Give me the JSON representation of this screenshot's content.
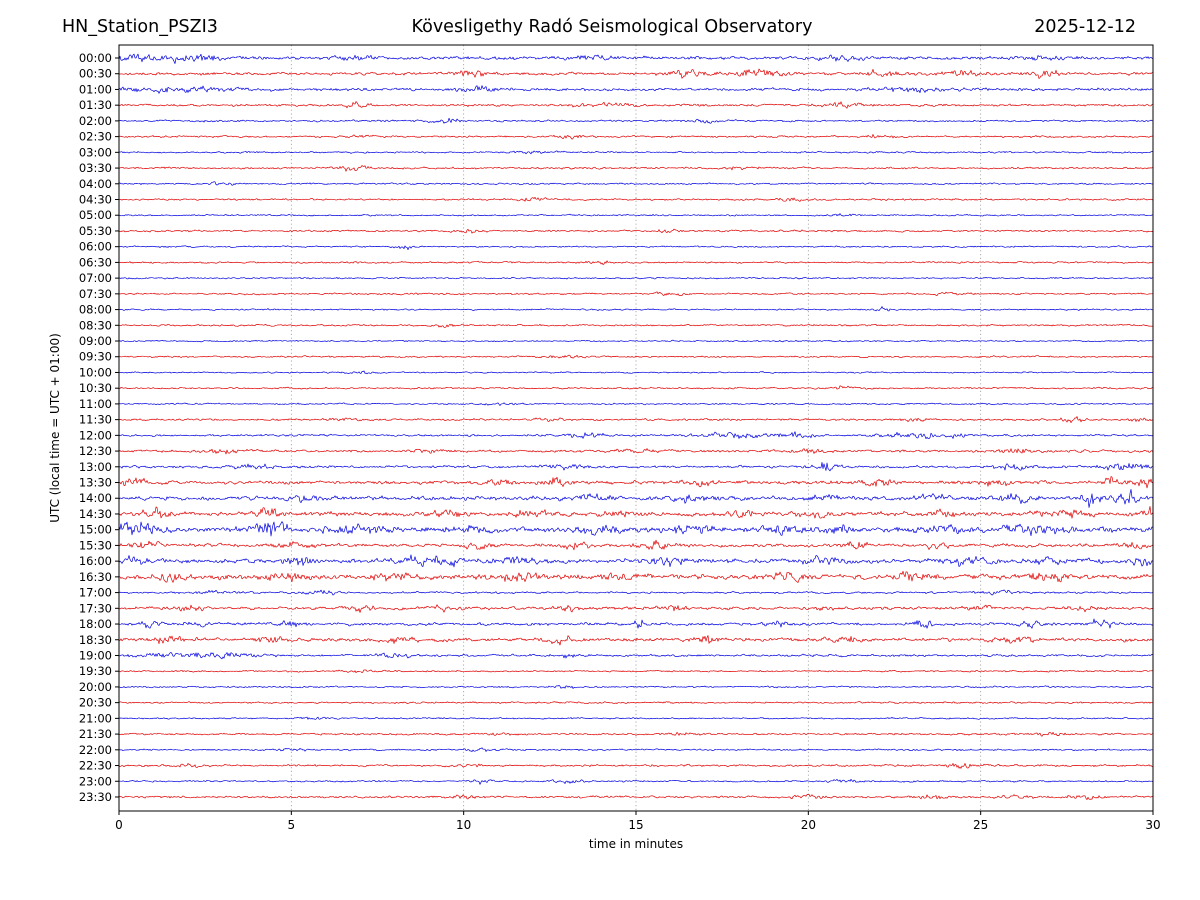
{
  "header": {
    "station": "HN_Station_PSZI3",
    "observatory": "Kövesligethy Radó Seismological Observatory",
    "date": "2025-12-12"
  },
  "axes": {
    "xlabel": "time in minutes",
    "ylabel": "UTC (local time = UTC + 01:00)",
    "x_ticks": [
      "0",
      "5",
      "10",
      "15",
      "20",
      "25",
      "30"
    ],
    "x_tick_values": [
      0,
      5,
      10,
      15,
      20,
      25,
      30
    ],
    "x_grid_values": [
      5,
      10,
      15,
      20,
      25
    ],
    "x_range": [
      0,
      30
    ],
    "grid_style": "dotted"
  },
  "colors": {
    "blue": "#0000e0",
    "red": "#e00000",
    "grid": "#999999",
    "axis": "#000000",
    "background": "#ffffff"
  },
  "chart_data": {
    "type": "line",
    "subtype": "helicorder-dayplot",
    "title": "HN_Station_PSZI3 Kövesligethy Radó Seismological Observatory 2025-12-12",
    "xlabel": "time in minutes",
    "ylabel": "UTC (local time = UTC + 01:00)",
    "minutes_per_row": 30,
    "rows_count": 48,
    "note": "48 alternating blue/red 30-min trace rows; base = background noise peak amplitude (px), bursts = [minute, extra peak amplitude px, width min]",
    "rows": [
      {
        "label": "00:00",
        "color": "blue",
        "base": 1.5,
        "bursts": [
          [
            0.8,
            2.8,
            1.2
          ],
          [
            2.5,
            2.5,
            0.8
          ],
          [
            6.8,
            2.5,
            0.5
          ],
          [
            13.5,
            2.0,
            0.6
          ],
          [
            21.0,
            2.0,
            0.6
          ],
          [
            27.0,
            2.0,
            0.5
          ]
        ]
      },
      {
        "label": "00:30",
        "color": "red",
        "base": 1.4,
        "bursts": [
          [
            10.2,
            3.2,
            0.4
          ],
          [
            16.5,
            2.5,
            0.6
          ],
          [
            18.5,
            2.8,
            0.8
          ],
          [
            22.1,
            3.5,
            0.4
          ],
          [
            24.5,
            2.5,
            0.6
          ],
          [
            26.8,
            2.8,
            0.5
          ]
        ]
      },
      {
        "label": "01:00",
        "color": "blue",
        "base": 1.4,
        "bursts": [
          [
            1.5,
            2.2,
            1.5
          ],
          [
            10.5,
            2.0,
            0.6
          ],
          [
            23.0,
            1.8,
            0.8
          ]
        ]
      },
      {
        "label": "01:30",
        "color": "red",
        "base": 1.1,
        "bursts": [
          [
            6.9,
            2.6,
            0.4
          ],
          [
            14.0,
            1.8,
            0.8
          ],
          [
            21.0,
            1.6,
            0.6
          ]
        ]
      },
      {
        "label": "02:00",
        "color": "blue",
        "base": 0.9,
        "bursts": [
          [
            9.5,
            1.8,
            0.5
          ],
          [
            17.0,
            1.5,
            0.5
          ]
        ]
      },
      {
        "label": "02:30",
        "color": "red",
        "base": 0.9,
        "bursts": [
          [
            7.0,
            1.6,
            0.5
          ],
          [
            13.0,
            1.5,
            0.5
          ],
          [
            22.0,
            1.4,
            0.5
          ]
        ]
      },
      {
        "label": "03:00",
        "color": "blue",
        "base": 0.8,
        "bursts": [
          [
            12.0,
            1.2,
            0.6
          ]
        ]
      },
      {
        "label": "03:30",
        "color": "red",
        "base": 0.9,
        "bursts": [
          [
            6.8,
            2.2,
            0.4
          ],
          [
            18.0,
            1.3,
            0.5
          ]
        ]
      },
      {
        "label": "04:00",
        "color": "blue",
        "base": 0.8,
        "bursts": [
          [
            3.0,
            1.2,
            0.5
          ]
        ]
      },
      {
        "label": "04:30",
        "color": "red",
        "base": 0.9,
        "bursts": [
          [
            12.0,
            1.7,
            0.4
          ],
          [
            19.5,
            1.5,
            0.4
          ]
        ]
      },
      {
        "label": "05:00",
        "color": "blue",
        "base": 0.75,
        "bursts": [
          [
            21.0,
            1.2,
            0.4
          ]
        ]
      },
      {
        "label": "05:30",
        "color": "red",
        "base": 0.9,
        "bursts": [
          [
            10.0,
            1.5,
            0.5
          ],
          [
            16.0,
            1.3,
            0.4
          ]
        ]
      },
      {
        "label": "06:00",
        "color": "blue",
        "base": 0.75,
        "bursts": [
          [
            8.3,
            1.6,
            0.3
          ]
        ]
      },
      {
        "label": "06:30",
        "color": "red",
        "base": 0.85,
        "bursts": [
          [
            14.0,
            1.3,
            0.4
          ]
        ]
      },
      {
        "label": "07:00",
        "color": "blue",
        "base": 0.75,
        "bursts": []
      },
      {
        "label": "07:30",
        "color": "red",
        "base": 0.85,
        "bursts": [
          [
            16.0,
            1.4,
            0.4
          ],
          [
            24.0,
            1.3,
            0.4
          ]
        ]
      },
      {
        "label": "08:00",
        "color": "blue",
        "base": 0.75,
        "bursts": [
          [
            22.1,
            2.2,
            0.25
          ]
        ]
      },
      {
        "label": "08:30",
        "color": "red",
        "base": 0.85,
        "bursts": [
          [
            9.5,
            1.5,
            0.4
          ]
        ]
      },
      {
        "label": "09:00",
        "color": "blue",
        "base": 0.7,
        "bursts": []
      },
      {
        "label": "09:30",
        "color": "red",
        "base": 0.8,
        "bursts": [
          [
            13.0,
            1.2,
            0.5
          ]
        ]
      },
      {
        "label": "10:00",
        "color": "blue",
        "base": 0.7,
        "bursts": [
          [
            7.0,
            1.1,
            0.4
          ]
        ]
      },
      {
        "label": "10:30",
        "color": "red",
        "base": 0.8,
        "bursts": [
          [
            21.0,
            1.4,
            0.4
          ]
        ]
      },
      {
        "label": "11:00",
        "color": "blue",
        "base": 0.75,
        "bursts": [
          [
            11.0,
            1.2,
            0.5
          ]
        ]
      },
      {
        "label": "11:30",
        "color": "red",
        "base": 0.95,
        "bursts": [
          [
            6.5,
            1.6,
            0.4
          ],
          [
            12.5,
            1.5,
            0.4
          ],
          [
            23.0,
            1.6,
            0.4
          ],
          [
            27.7,
            1.8,
            0.4
          ],
          [
            29.6,
            1.8,
            0.3
          ]
        ]
      },
      {
        "label": "12:00",
        "color": "blue",
        "base": 1.0,
        "bursts": [
          [
            13.5,
            1.8,
            0.6
          ],
          [
            17.8,
            2.4,
            1.0
          ],
          [
            19.6,
            2.2,
            0.5
          ],
          [
            22.4,
            2.2,
            0.5
          ],
          [
            23.4,
            2.6,
            0.4
          ],
          [
            24.3,
            3.0,
            0.25
          ]
        ]
      },
      {
        "label": "12:30",
        "color": "red",
        "base": 1.2,
        "bursts": [
          [
            3.0,
            1.8,
            0.6
          ],
          [
            9.0,
            1.6,
            0.5
          ],
          [
            15.0,
            1.8,
            0.5
          ],
          [
            20.0,
            1.6,
            0.5
          ],
          [
            26.0,
            1.6,
            0.5
          ]
        ]
      },
      {
        "label": "13:00",
        "color": "blue",
        "base": 1.2,
        "bursts": [
          [
            4.0,
            1.8,
            0.6
          ],
          [
            13.0,
            1.8,
            0.6
          ],
          [
            20.5,
            4.2,
            0.3
          ],
          [
            25.8,
            2.8,
            0.5
          ],
          [
            29.2,
            3.2,
            0.6
          ]
        ]
      },
      {
        "label": "13:30",
        "color": "red",
        "base": 1.7,
        "bursts": [
          [
            0.5,
            2.5,
            0.5
          ],
          [
            11.0,
            2.8,
            0.4
          ],
          [
            12.7,
            3.2,
            0.4
          ],
          [
            17.0,
            2.5,
            0.5
          ],
          [
            22.0,
            2.8,
            0.4
          ],
          [
            25.5,
            2.5,
            0.5
          ],
          [
            28.8,
            4.2,
            0.4
          ],
          [
            29.8,
            3.5,
            0.3
          ]
        ]
      },
      {
        "label": "14:00",
        "color": "blue",
        "base": 1.9,
        "bursts": [
          [
            5.5,
            2.5,
            0.6
          ],
          [
            13.5,
            2.8,
            0.7
          ],
          [
            16.5,
            2.8,
            0.5
          ],
          [
            20.5,
            2.5,
            0.5
          ],
          [
            23.5,
            3.5,
            0.4
          ],
          [
            26.0,
            3.2,
            0.5
          ],
          [
            28.2,
            6.0,
            0.3
          ],
          [
            29.3,
            7.0,
            0.35
          ]
        ]
      },
      {
        "label": "14:30",
        "color": "red",
        "base": 1.9,
        "bursts": [
          [
            1.1,
            4.2,
            0.35
          ],
          [
            4.3,
            5.0,
            0.3
          ],
          [
            9.5,
            2.8,
            0.5
          ],
          [
            12.0,
            2.5,
            0.5
          ],
          [
            14.5,
            2.8,
            0.5
          ],
          [
            18.0,
            2.5,
            0.5
          ],
          [
            20.0,
            2.8,
            0.5
          ],
          [
            24.0,
            3.2,
            0.4
          ],
          [
            27.5,
            3.5,
            0.6
          ],
          [
            29.9,
            5.0,
            0.25
          ]
        ]
      },
      {
        "label": "15:00",
        "color": "blue",
        "base": 2.6,
        "bursts": [
          [
            0.5,
            5.5,
            0.55
          ],
          [
            4.4,
            8.0,
            0.4
          ],
          [
            6.8,
            3.5,
            0.8
          ],
          [
            10.3,
            3.0,
            0.6
          ],
          [
            14.0,
            3.0,
            0.7
          ],
          [
            16.5,
            3.0,
            0.6
          ],
          [
            19.5,
            3.2,
            0.7
          ],
          [
            21.0,
            3.0,
            0.5
          ],
          [
            24.0,
            3.0,
            0.6
          ],
          [
            26.5,
            3.2,
            0.8
          ]
        ]
      },
      {
        "label": "15:30",
        "color": "red",
        "base": 1.6,
        "bursts": [
          [
            0.8,
            2.5,
            0.4
          ],
          [
            5.0,
            2.2,
            0.5
          ],
          [
            10.4,
            3.2,
            0.3
          ],
          [
            13.3,
            2.8,
            0.4
          ],
          [
            15.5,
            2.8,
            0.5
          ],
          [
            21.3,
            2.5,
            0.4
          ],
          [
            23.8,
            2.5,
            0.4
          ],
          [
            29.4,
            3.0,
            0.4
          ]
        ]
      },
      {
        "label": "16:00",
        "color": "blue",
        "base": 2.1,
        "bursts": [
          [
            0.4,
            3.0,
            0.4
          ],
          [
            5.2,
            3.8,
            0.35
          ],
          [
            9.0,
            3.5,
            0.9
          ],
          [
            11.5,
            3.0,
            0.6
          ],
          [
            16.0,
            2.8,
            0.6
          ],
          [
            20.5,
            2.8,
            0.5
          ],
          [
            24.5,
            3.2,
            0.5
          ],
          [
            27.0,
            2.8,
            0.5
          ],
          [
            29.6,
            4.0,
            0.3
          ]
        ]
      },
      {
        "label": "16:30",
        "color": "red",
        "base": 2.3,
        "bursts": [
          [
            1.5,
            3.2,
            0.5
          ],
          [
            5.0,
            2.8,
            0.6
          ],
          [
            8.0,
            2.8,
            0.6
          ],
          [
            11.5,
            3.2,
            0.8
          ],
          [
            14.5,
            2.8,
            0.6
          ],
          [
            19.5,
            3.0,
            0.5
          ],
          [
            23.0,
            2.8,
            0.5
          ],
          [
            27.0,
            2.8,
            0.6
          ]
        ]
      },
      {
        "label": "17:00",
        "color": "blue",
        "base": 0.95,
        "bursts": [
          [
            3.0,
            1.5,
            0.6
          ],
          [
            6.0,
            1.6,
            0.5
          ],
          [
            25.5,
            1.4,
            0.5
          ]
        ]
      },
      {
        "label": "17:30",
        "color": "red",
        "base": 1.4,
        "bursts": [
          [
            2.0,
            2.0,
            0.5
          ],
          [
            7.0,
            2.2,
            0.4
          ],
          [
            9.3,
            2.2,
            0.4
          ],
          [
            13.0,
            2.4,
            0.4
          ],
          [
            16.0,
            2.0,
            0.5
          ],
          [
            20.5,
            2.0,
            0.4
          ],
          [
            25.0,
            2.0,
            0.4
          ],
          [
            28.0,
            2.0,
            0.4
          ]
        ]
      },
      {
        "label": "18:00",
        "color": "blue",
        "base": 1.4,
        "bursts": [
          [
            0.9,
            2.8,
            0.3
          ],
          [
            2.1,
            2.6,
            0.3
          ],
          [
            5.0,
            2.0,
            0.5
          ],
          [
            15.1,
            5.0,
            0.15
          ],
          [
            19.0,
            2.0,
            0.5
          ],
          [
            23.3,
            2.8,
            0.3
          ],
          [
            26.5,
            2.2,
            0.4
          ],
          [
            28.5,
            3.0,
            0.4
          ]
        ]
      },
      {
        "label": "18:30",
        "color": "red",
        "base": 1.7,
        "bursts": [
          [
            1.5,
            2.5,
            0.5
          ],
          [
            4.5,
            2.8,
            0.4
          ],
          [
            8.0,
            2.4,
            0.5
          ],
          [
            12.8,
            3.2,
            0.3
          ],
          [
            17.0,
            3.5,
            0.3
          ],
          [
            21.0,
            2.4,
            0.5
          ],
          [
            26.0,
            2.4,
            0.5
          ]
        ]
      },
      {
        "label": "19:00",
        "color": "blue",
        "base": 1.1,
        "bursts": [
          [
            1.5,
            2.2,
            1.0
          ],
          [
            3.2,
            2.6,
            0.7
          ],
          [
            8.0,
            1.8,
            0.5
          ],
          [
            13.0,
            1.5,
            0.5
          ]
        ]
      },
      {
        "label": "19:30",
        "color": "red",
        "base": 0.8,
        "bursts": [
          [
            7.0,
            1.2,
            0.5
          ]
        ]
      },
      {
        "label": "20:00",
        "color": "blue",
        "base": 0.75,
        "bursts": [
          [
            13.0,
            1.2,
            0.4
          ]
        ]
      },
      {
        "label": "20:30",
        "color": "red",
        "base": 0.85,
        "bursts": []
      },
      {
        "label": "21:00",
        "color": "blue",
        "base": 0.75,
        "bursts": [
          [
            5.5,
            1.1,
            0.4
          ]
        ]
      },
      {
        "label": "21:30",
        "color": "red",
        "base": 0.95,
        "bursts": [
          [
            11.0,
            1.5,
            0.4
          ],
          [
            16.2,
            1.4,
            0.4
          ],
          [
            27.0,
            1.3,
            0.4
          ]
        ]
      },
      {
        "label": "22:00",
        "color": "blue",
        "base": 0.8,
        "bursts": [
          [
            5.0,
            1.3,
            0.4
          ],
          [
            10.5,
            1.2,
            0.4
          ]
        ]
      },
      {
        "label": "22:30",
        "color": "red",
        "base": 1.0,
        "bursts": [
          [
            2.0,
            1.4,
            0.4
          ],
          [
            10.0,
            1.3,
            0.5
          ],
          [
            24.5,
            1.5,
            0.4
          ]
        ]
      },
      {
        "label": "23:00",
        "color": "blue",
        "base": 0.8,
        "bursts": [
          [
            10.5,
            1.8,
            0.3
          ],
          [
            13.0,
            1.5,
            0.4
          ],
          [
            21.0,
            1.2,
            0.4
          ]
        ]
      },
      {
        "label": "23:30",
        "color": "red",
        "base": 1.0,
        "bursts": [
          [
            10.0,
            1.4,
            0.4
          ],
          [
            20.0,
            1.4,
            0.5
          ],
          [
            23.5,
            1.6,
            0.5
          ],
          [
            26.0,
            1.7,
            0.4
          ],
          [
            28.0,
            1.8,
            0.4
          ]
        ]
      }
    ]
  }
}
